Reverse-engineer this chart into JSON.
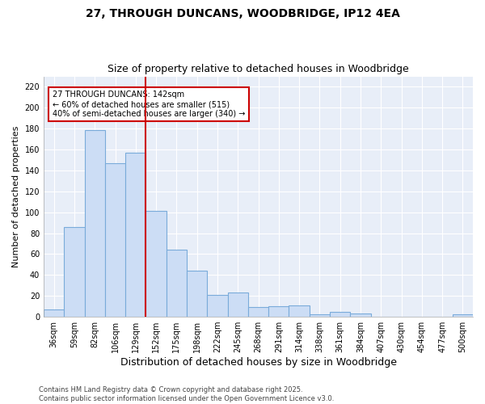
{
  "title": "27, THROUGH DUNCANS, WOODBRIDGE, IP12 4EA",
  "subtitle": "Size of property relative to detached houses in Woodbridge",
  "xlabel": "Distribution of detached houses by size in Woodbridge",
  "ylabel": "Number of detached properties",
  "bar_color": "#ccddf5",
  "bar_edge_color": "#7aabda",
  "background_color": "#ffffff",
  "axes_bg_color": "#e8eef8",
  "grid_color": "#ffffff",
  "categories": [
    "36sqm",
    "59sqm",
    "82sqm",
    "106sqm",
    "129sqm",
    "152sqm",
    "175sqm",
    "198sqm",
    "222sqm",
    "245sqm",
    "268sqm",
    "291sqm",
    "314sqm",
    "338sqm",
    "361sqm",
    "384sqm",
    "407sqm",
    "430sqm",
    "454sqm",
    "477sqm",
    "500sqm"
  ],
  "values": [
    7,
    86,
    179,
    147,
    157,
    101,
    64,
    44,
    21,
    23,
    9,
    10,
    11,
    2,
    5,
    3,
    0,
    0,
    0,
    0,
    2
  ],
  "vline_x": 4.5,
  "vline_color": "#cc0000",
  "annotation_line1": "27 THROUGH DUNCANS: 142sqm",
  "annotation_line2": "← 60% of detached houses are smaller (515)",
  "annotation_line3": "40% of semi-detached houses are larger (340) →",
  "ylim": [
    0,
    230
  ],
  "yticks": [
    0,
    20,
    40,
    60,
    80,
    100,
    120,
    140,
    160,
    180,
    200,
    220
  ],
  "footer": "Contains HM Land Registry data © Crown copyright and database right 2025.\nContains public sector information licensed under the Open Government Licence v3.0.",
  "title_fontsize": 10,
  "subtitle_fontsize": 9,
  "tick_fontsize": 7,
  "ylabel_fontsize": 8,
  "xlabel_fontsize": 9,
  "annotation_fontsize": 7,
  "footer_fontsize": 6
}
